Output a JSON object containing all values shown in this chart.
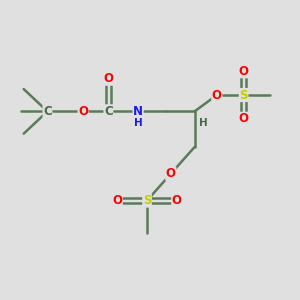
{
  "bg_color": "#e0e0e0",
  "bond_color": "#5a7a5a",
  "bond_width": 1.8,
  "atom_colors": {
    "O": "#ff0000",
    "N": "#1a1aee",
    "S": "#cccc00",
    "C": "#4a6a4a",
    "H": "#4a6a4a"
  },
  "fs_large": 10,
  "fs_med": 8.5,
  "fs_small": 7.5,
  "xlim": [
    0,
    10
  ],
  "ylim": [
    0,
    10
  ]
}
